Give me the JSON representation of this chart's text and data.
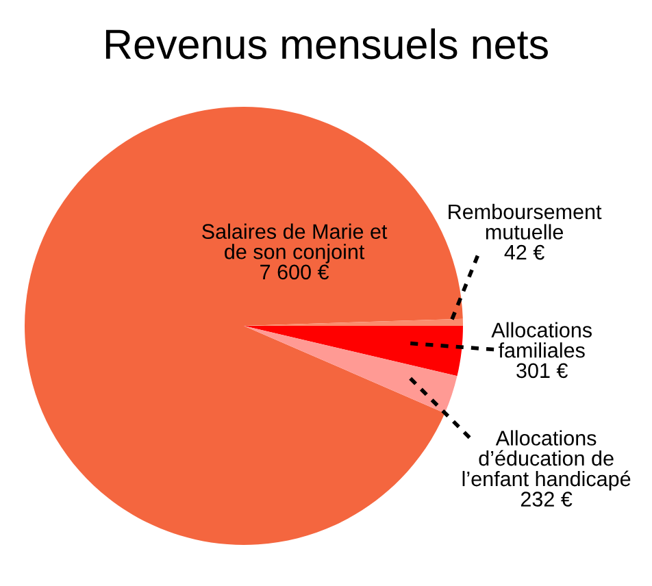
{
  "chart_data": {
    "type": "pie",
    "title": "Revenus mensuels nets",
    "categories": [
      "Salaires de Marie et\nde son conjoint",
      "Remboursement\nmutuelle",
      "Allocations\nfamiliales",
      "Allocations\nd’éducation de\nl’enfant handicapé"
    ],
    "values": [
      7600,
      42,
      301,
      232
    ],
    "colors": [
      "#f4663f",
      "#fb8c6c",
      "#ff0000",
      "#ff9a94"
    ],
    "value_labels": [
      "7 600 €",
      "42 €",
      "301 €",
      "232 €"
    ]
  }
}
